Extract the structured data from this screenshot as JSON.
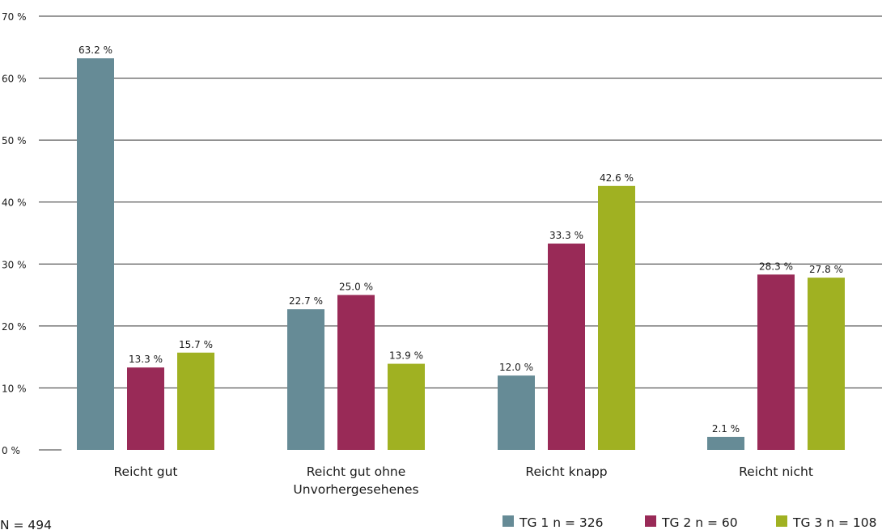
{
  "chart_data": {
    "type": "bar",
    "title": "",
    "xlabel": "",
    "ylabel": "",
    "ylim": [
      0,
      70
    ],
    "yticks": [
      0,
      10,
      20,
      30,
      40,
      50,
      60,
      70
    ],
    "ytick_labels": [
      "0 %",
      "10 %",
      "20 %",
      "30 %",
      "40 %",
      "50 %",
      "60 %",
      "70 %"
    ],
    "grid": true,
    "legend_position": "bottom-right",
    "categories": [
      [
        "Reicht gut"
      ],
      [
        "Reicht gut ohne",
        "Unvorhergesehenes"
      ],
      [
        "Reicht knapp"
      ],
      [
        "Reicht nicht"
      ]
    ],
    "series": [
      {
        "name": "TG 1 n = 326",
        "color": "#668b96",
        "values": [
          63.2,
          22.7,
          12.0,
          2.1
        ],
        "value_labels": [
          "63.2 %",
          "22.7 %",
          "12.0 %",
          "2.1 %"
        ]
      },
      {
        "name": "TG 2 n = 60",
        "color": "#992a57",
        "values": [
          13.3,
          25.0,
          33.3,
          28.3
        ],
        "value_labels": [
          "13.3 %",
          "25.0 %",
          "33.3 %",
          "28.3 %"
        ]
      },
      {
        "name": "TG 3 n = 108",
        "color": "#a0b122",
        "values": [
          15.7,
          13.9,
          42.6,
          27.8
        ],
        "value_labels": [
          "15.7 %",
          "13.9 %",
          "42.6 %",
          "27.8 %"
        ]
      }
    ],
    "footnote": "N = 494"
  }
}
